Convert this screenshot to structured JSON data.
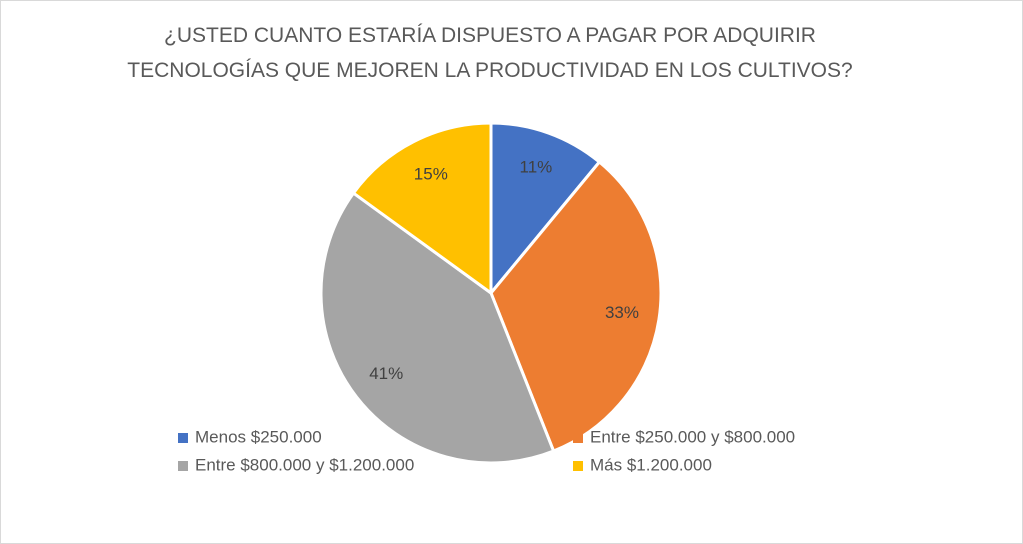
{
  "chart_data": {
    "type": "pie",
    "title": "¿USTED CUANTO ESTARÍA DISPUESTO A PAGAR POR ADQUIRIR TECNOLOGÍAS QUE MEJOREN LA PRODUCTIVIDAD EN LOS CULTIVOS?",
    "categories": [
      "Menos $250.000",
      "Entre $250.000 y $800.000",
      "Entre $800.000 y $1.200.000",
      "Más $1.200.000"
    ],
    "values": [
      11,
      33,
      41,
      15
    ],
    "value_labels": [
      "11%",
      "33%",
      "41%",
      "15%"
    ],
    "colors": [
      "#4472c4",
      "#ed7d31",
      "#a5a5a5",
      "#ffc000"
    ],
    "legend": "bottom"
  }
}
